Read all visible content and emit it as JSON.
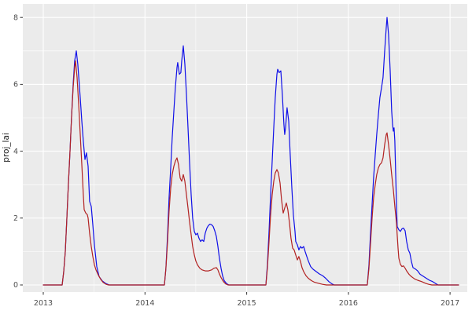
{
  "figure": {
    "background": "#FFFFFF"
  },
  "chart_data": {
    "type": "line",
    "title": "",
    "xlabel": "",
    "ylabel": "proj_lai",
    "legend_position": "none",
    "grid_on": true,
    "panel_background": "#EBEBEB",
    "grid_color": "#FFFFFF",
    "tick_label_color": "#4D4D4D",
    "axis_title_color": "#1A1A1A",
    "tick_mark_color": "#333333",
    "x_range": [
      2012.799,
      2017.169
    ],
    "y_range": [
      -0.211,
      8.403
    ],
    "x_major_ticks": [
      {
        "value": 2013,
        "label": "2013"
      },
      {
        "value": 2014,
        "label": "2014"
      },
      {
        "value": 2015,
        "label": "2015"
      },
      {
        "value": 2016,
        "label": "2016"
      },
      {
        "value": 2017,
        "label": "2017"
      }
    ],
    "x_minor_ticks": [
      2013.5,
      2014.5,
      2015.5,
      2016.5
    ],
    "y_major_ticks": [
      {
        "value": 0,
        "label": "0"
      },
      {
        "value": 2,
        "label": "2"
      },
      {
        "value": 4,
        "label": "4"
      },
      {
        "value": 6,
        "label": "6"
      },
      {
        "value": 8,
        "label": "8"
      }
    ],
    "y_minor_ticks": [
      1,
      3,
      5,
      7
    ],
    "series": [
      {
        "name": "series-blue",
        "color": "#1010E8",
        "points": [
          [
            2013.0,
            0
          ],
          [
            2013.186,
            0
          ],
          [
            2013.201,
            0.4
          ],
          [
            2013.217,
            1.0
          ],
          [
            2013.232,
            2.0
          ],
          [
            2013.247,
            3.0
          ],
          [
            2013.263,
            4.0
          ],
          [
            2013.278,
            5.0
          ],
          [
            2013.294,
            6.0
          ],
          [
            2013.309,
            6.7
          ],
          [
            2013.325,
            7.0
          ],
          [
            2013.34,
            6.6
          ],
          [
            2013.364,
            5.6
          ],
          [
            2013.379,
            4.9
          ],
          [
            2013.394,
            4.3
          ],
          [
            2013.41,
            3.75
          ],
          [
            2013.425,
            3.95
          ],
          [
            2013.441,
            3.55
          ],
          [
            2013.456,
            2.5
          ],
          [
            2013.472,
            2.35
          ],
          [
            2013.487,
            1.8
          ],
          [
            2013.503,
            1.2
          ],
          [
            2013.526,
            0.55
          ],
          [
            2013.549,
            0.25
          ],
          [
            2013.58,
            0.12
          ],
          [
            2013.611,
            0.05
          ],
          [
            2013.65,
            0
          ],
          [
            2014.191,
            0
          ],
          [
            2014.206,
            0.5
          ],
          [
            2014.222,
            1.5
          ],
          [
            2014.237,
            2.6
          ],
          [
            2014.253,
            3.5
          ],
          [
            2014.268,
            4.4
          ],
          [
            2014.284,
            5.2
          ],
          [
            2014.299,
            5.9
          ],
          [
            2014.315,
            6.5
          ],
          [
            2014.322,
            6.65
          ],
          [
            2014.338,
            6.3
          ],
          [
            2014.353,
            6.35
          ],
          [
            2014.361,
            6.7
          ],
          [
            2014.377,
            7.15
          ],
          [
            2014.392,
            6.6
          ],
          [
            2014.408,
            5.7
          ],
          [
            2014.423,
            4.7
          ],
          [
            2014.438,
            3.7
          ],
          [
            2014.454,
            2.7
          ],
          [
            2014.469,
            2.0
          ],
          [
            2014.485,
            1.6
          ],
          [
            2014.5,
            1.5
          ],
          [
            2014.516,
            1.55
          ],
          [
            2014.531,
            1.4
          ],
          [
            2014.547,
            1.3
          ],
          [
            2014.562,
            1.35
          ],
          [
            2014.578,
            1.3
          ],
          [
            2014.593,
            1.55
          ],
          [
            2014.609,
            1.7
          ],
          [
            2014.624,
            1.78
          ],
          [
            2014.64,
            1.82
          ],
          [
            2014.655,
            1.8
          ],
          [
            2014.671,
            1.75
          ],
          [
            2014.686,
            1.62
          ],
          [
            2014.702,
            1.45
          ],
          [
            2014.717,
            1.15
          ],
          [
            2014.732,
            0.8
          ],
          [
            2014.748,
            0.5
          ],
          [
            2014.763,
            0.28
          ],
          [
            2014.779,
            0.13
          ],
          [
            2014.802,
            0.04
          ],
          [
            2014.825,
            0
          ],
          [
            2015.189,
            0
          ],
          [
            2015.204,
            0.6
          ],
          [
            2015.22,
            1.6
          ],
          [
            2015.235,
            2.7
          ],
          [
            2015.251,
            3.7
          ],
          [
            2015.266,
            4.7
          ],
          [
            2015.281,
            5.6
          ],
          [
            2015.297,
            6.3
          ],
          [
            2015.305,
            6.45
          ],
          [
            2015.32,
            6.35
          ],
          [
            2015.336,
            6.4
          ],
          [
            2015.351,
            5.7
          ],
          [
            2015.366,
            4.8
          ],
          [
            2015.374,
            4.5
          ],
          [
            2015.382,
            4.7
          ],
          [
            2015.397,
            5.3
          ],
          [
            2015.413,
            4.9
          ],
          [
            2015.428,
            3.9
          ],
          [
            2015.444,
            2.9
          ],
          [
            2015.459,
            2.1
          ],
          [
            2015.475,
            1.6
          ],
          [
            2015.482,
            1.3
          ],
          [
            2015.498,
            1.2
          ],
          [
            2015.513,
            1.05
          ],
          [
            2015.529,
            1.15
          ],
          [
            2015.544,
            1.1
          ],
          [
            2015.56,
            1.15
          ],
          [
            2015.575,
            1.0
          ],
          [
            2015.591,
            0.85
          ],
          [
            2015.606,
            0.72
          ],
          [
            2015.629,
            0.55
          ],
          [
            2015.653,
            0.47
          ],
          [
            2015.684,
            0.4
          ],
          [
            2015.715,
            0.33
          ],
          [
            2015.746,
            0.28
          ],
          [
            2015.777,
            0.2
          ],
          [
            2015.808,
            0.1
          ],
          [
            2015.839,
            0.03
          ],
          [
            2015.862,
            0
          ],
          [
            2016.186,
            0
          ],
          [
            2016.202,
            0.6
          ],
          [
            2016.217,
            1.5
          ],
          [
            2016.233,
            2.4
          ],
          [
            2016.248,
            3.2
          ],
          [
            2016.264,
            3.9
          ],
          [
            2016.279,
            4.5
          ],
          [
            2016.295,
            5.1
          ],
          [
            2016.31,
            5.6
          ],
          [
            2016.326,
            5.9
          ],
          [
            2016.341,
            6.2
          ],
          [
            2016.357,
            7.0
          ],
          [
            2016.372,
            7.7
          ],
          [
            2016.38,
            8.0
          ],
          [
            2016.395,
            7.5
          ],
          [
            2016.411,
            6.4
          ],
          [
            2016.426,
            5.2
          ],
          [
            2016.434,
            4.8
          ],
          [
            2016.442,
            4.6
          ],
          [
            2016.449,
            4.7
          ],
          [
            2016.457,
            4.3
          ],
          [
            2016.465,
            3.3
          ],
          [
            2016.473,
            2.4
          ],
          [
            2016.48,
            1.75
          ],
          [
            2016.496,
            1.65
          ],
          [
            2016.511,
            1.6
          ],
          [
            2016.527,
            1.68
          ],
          [
            2016.542,
            1.7
          ],
          [
            2016.558,
            1.62
          ],
          [
            2016.573,
            1.3
          ],
          [
            2016.589,
            1.05
          ],
          [
            2016.604,
            0.95
          ],
          [
            2016.62,
            0.7
          ],
          [
            2016.635,
            0.52
          ],
          [
            2016.658,
            0.48
          ],
          [
            2016.681,
            0.42
          ],
          [
            2016.705,
            0.32
          ],
          [
            2016.735,
            0.26
          ],
          [
            2016.766,
            0.2
          ],
          [
            2016.797,
            0.14
          ],
          [
            2016.828,
            0.1
          ],
          [
            2016.859,
            0.04
          ],
          [
            2016.883,
            0
          ],
          [
            2017.084,
            0
          ]
        ]
      },
      {
        "name": "series-red",
        "color": "#B22222",
        "points": [
          [
            2013.0,
            0
          ],
          [
            2013.186,
            0
          ],
          [
            2013.201,
            0.4
          ],
          [
            2013.217,
            1.0
          ],
          [
            2013.232,
            2.0
          ],
          [
            2013.247,
            3.0
          ],
          [
            2013.263,
            4.0
          ],
          [
            2013.278,
            5.0
          ],
          [
            2013.294,
            5.9
          ],
          [
            2013.309,
            6.5
          ],
          [
            2013.317,
            6.7
          ],
          [
            2013.333,
            6.2
          ],
          [
            2013.348,
            5.4
          ],
          [
            2013.364,
            4.5
          ],
          [
            2013.379,
            3.6
          ],
          [
            2013.394,
            2.7
          ],
          [
            2013.402,
            2.25
          ],
          [
            2013.418,
            2.15
          ],
          [
            2013.433,
            2.1
          ],
          [
            2013.441,
            2.0
          ],
          [
            2013.456,
            1.55
          ],
          [
            2013.472,
            1.15
          ],
          [
            2013.487,
            0.85
          ],
          [
            2013.503,
            0.6
          ],
          [
            2013.518,
            0.45
          ],
          [
            2013.541,
            0.3
          ],
          [
            2013.565,
            0.17
          ],
          [
            2013.588,
            0.08
          ],
          [
            2013.619,
            0.02
          ],
          [
            2013.642,
            0
          ],
          [
            2014.191,
            0
          ],
          [
            2014.206,
            0.5
          ],
          [
            2014.222,
            1.3
          ],
          [
            2014.237,
            2.2
          ],
          [
            2014.253,
            2.9
          ],
          [
            2014.268,
            3.3
          ],
          [
            2014.284,
            3.55
          ],
          [
            2014.299,
            3.7
          ],
          [
            2014.315,
            3.8
          ],
          [
            2014.33,
            3.6
          ],
          [
            2014.346,
            3.2
          ],
          [
            2014.361,
            3.1
          ],
          [
            2014.377,
            3.3
          ],
          [
            2014.392,
            3.1
          ],
          [
            2014.408,
            2.7
          ],
          [
            2014.423,
            2.3
          ],
          [
            2014.438,
            1.9
          ],
          [
            2014.454,
            1.5
          ],
          [
            2014.469,
            1.15
          ],
          [
            2014.485,
            0.9
          ],
          [
            2014.5,
            0.72
          ],
          [
            2014.516,
            0.6
          ],
          [
            2014.539,
            0.5
          ],
          [
            2014.562,
            0.45
          ],
          [
            2014.593,
            0.42
          ],
          [
            2014.624,
            0.42
          ],
          [
            2014.655,
            0.45
          ],
          [
            2014.678,
            0.5
          ],
          [
            2014.702,
            0.52
          ],
          [
            2014.717,
            0.45
          ],
          [
            2014.732,
            0.33
          ],
          [
            2014.748,
            0.22
          ],
          [
            2014.771,
            0.1
          ],
          [
            2014.794,
            0.03
          ],
          [
            2014.817,
            0
          ],
          [
            2015.189,
            0
          ],
          [
            2015.204,
            0.5
          ],
          [
            2015.22,
            1.3
          ],
          [
            2015.235,
            2.1
          ],
          [
            2015.251,
            2.7
          ],
          [
            2015.266,
            3.1
          ],
          [
            2015.281,
            3.35
          ],
          [
            2015.297,
            3.45
          ],
          [
            2015.312,
            3.35
          ],
          [
            2015.328,
            3.05
          ],
          [
            2015.343,
            2.55
          ],
          [
            2015.359,
            2.15
          ],
          [
            2015.374,
            2.3
          ],
          [
            2015.39,
            2.45
          ],
          [
            2015.405,
            2.25
          ],
          [
            2015.421,
            1.85
          ],
          [
            2015.436,
            1.4
          ],
          [
            2015.452,
            1.1
          ],
          [
            2015.467,
            1.05
          ],
          [
            2015.482,
            0.9
          ],
          [
            2015.498,
            0.75
          ],
          [
            2015.513,
            0.85
          ],
          [
            2015.529,
            0.7
          ],
          [
            2015.544,
            0.52
          ],
          [
            2015.56,
            0.4
          ],
          [
            2015.583,
            0.28
          ],
          [
            2015.606,
            0.2
          ],
          [
            2015.637,
            0.13
          ],
          [
            2015.668,
            0.08
          ],
          [
            2015.707,
            0.05
          ],
          [
            2015.746,
            0.02
          ],
          [
            2015.785,
            0
          ],
          [
            2016.186,
            0
          ],
          [
            2016.202,
            0.5
          ],
          [
            2016.217,
            1.2
          ],
          [
            2016.233,
            2.0
          ],
          [
            2016.248,
            2.6
          ],
          [
            2016.264,
            3.0
          ],
          [
            2016.279,
            3.3
          ],
          [
            2016.295,
            3.5
          ],
          [
            2016.31,
            3.6
          ],
          [
            2016.326,
            3.65
          ],
          [
            2016.341,
            3.8
          ],
          [
            2016.357,
            4.2
          ],
          [
            2016.372,
            4.5
          ],
          [
            2016.38,
            4.55
          ],
          [
            2016.395,
            4.2
          ],
          [
            2016.411,
            3.75
          ],
          [
            2016.426,
            3.3
          ],
          [
            2016.442,
            2.85
          ],
          [
            2016.457,
            2.35
          ],
          [
            2016.473,
            1.85
          ],
          [
            2016.48,
            1.5
          ],
          [
            2016.488,
            1.1
          ],
          [
            2016.496,
            0.8
          ],
          [
            2016.511,
            0.62
          ],
          [
            2016.527,
            0.55
          ],
          [
            2016.542,
            0.57
          ],
          [
            2016.558,
            0.5
          ],
          [
            2016.573,
            0.42
          ],
          [
            2016.596,
            0.32
          ],
          [
            2016.62,
            0.25
          ],
          [
            2016.651,
            0.18
          ],
          [
            2016.681,
            0.14
          ],
          [
            2016.72,
            0.1
          ],
          [
            2016.759,
            0.05
          ],
          [
            2016.79,
            0.02
          ],
          [
            2016.821,
            0
          ],
          [
            2017.084,
            0
          ]
        ]
      }
    ]
  }
}
